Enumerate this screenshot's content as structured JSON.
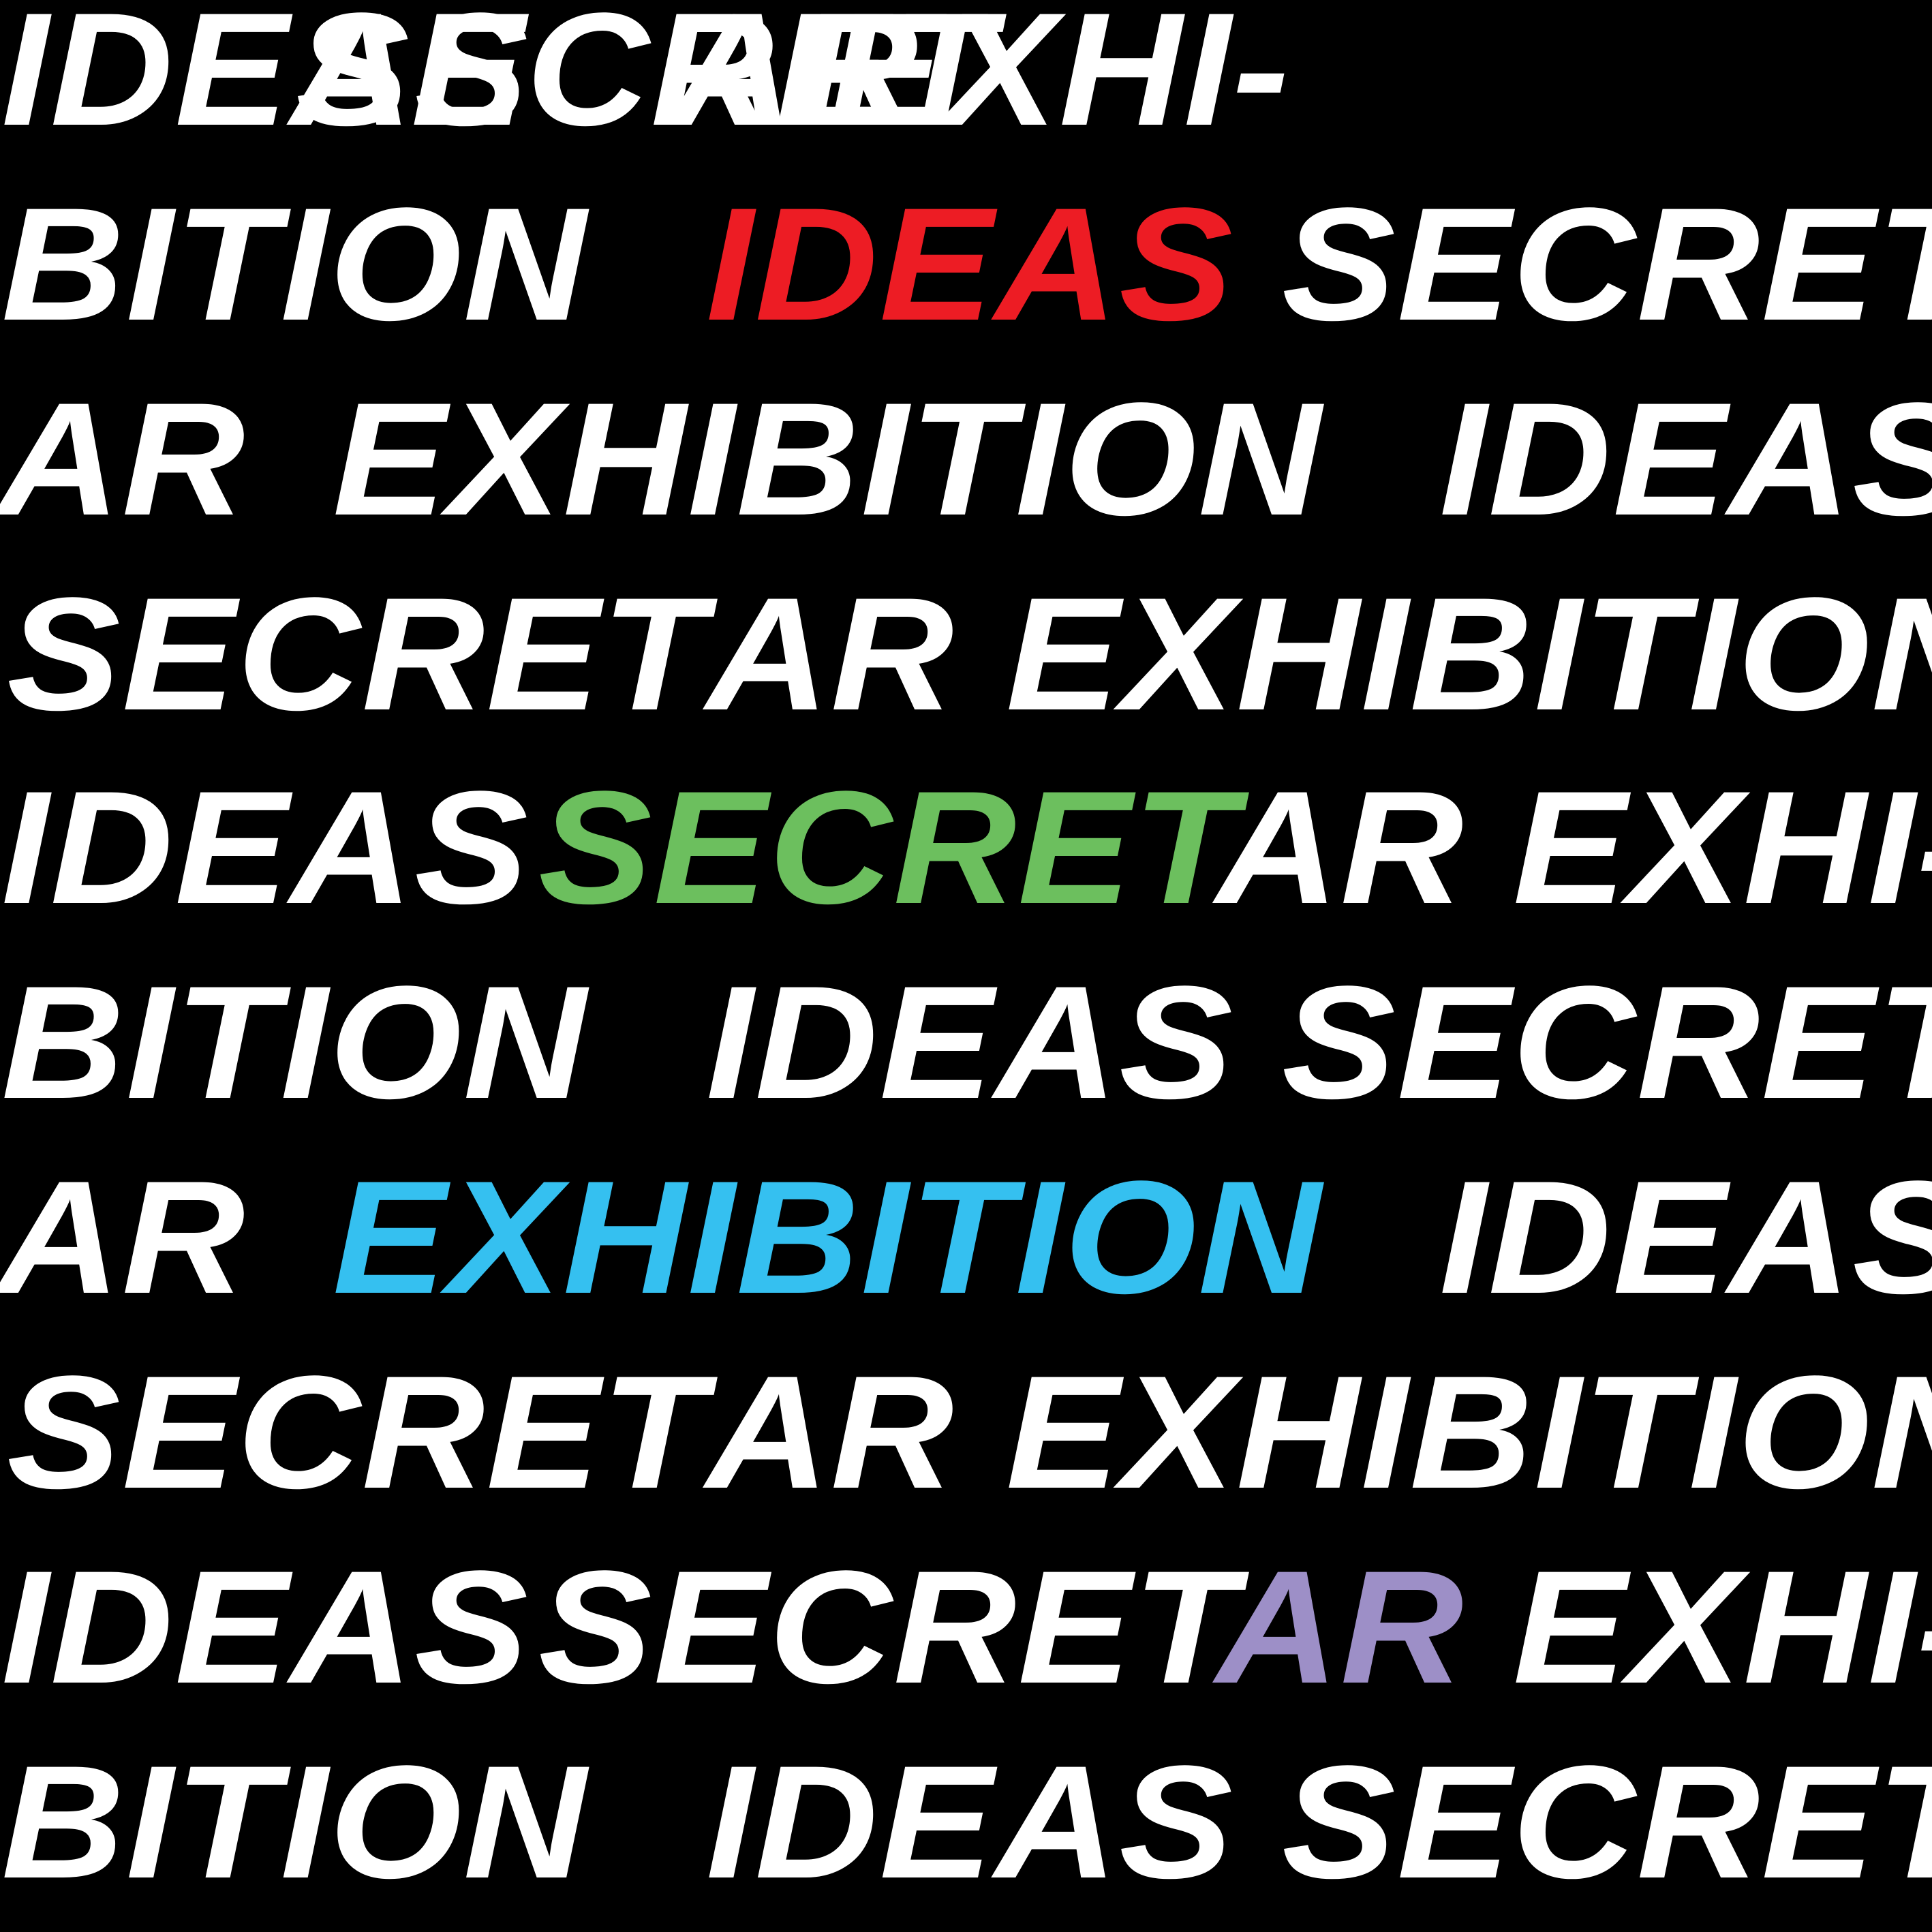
{
  "colors": {
    "background": "#000000",
    "default_text": "#ffffff",
    "red": "#ed1c24",
    "green": "#6cbf5e",
    "blue": "#35c0f0",
    "purple": "#9d8fc7"
  },
  "lines": [
    {
      "words": [
        {
          "text": "IDEAS"
        },
        {
          "text": "SECRET"
        },
        {
          "text": "AR"
        },
        {
          "text": "EXHI-"
        }
      ]
    },
    {
      "words": [
        {
          "text": "BITION"
        },
        {
          "text": "IDEAS",
          "color": "red"
        },
        {
          "text": "SECRET"
        }
      ]
    },
    {
      "words": [
        {
          "text": "AR"
        },
        {
          "text": "EXHIBITION"
        },
        {
          "text": "IDEAS"
        }
      ]
    },
    {
      "words": [
        {
          "text": "SECRET"
        },
        {
          "text": "AR"
        },
        {
          "text": "EXHIBITION"
        }
      ]
    },
    {
      "words": [
        {
          "text": "IDEAS"
        },
        {
          "text": "SECRET",
          "color": "green"
        },
        {
          "text": "AR"
        },
        {
          "text": "EXHI-"
        }
      ]
    },
    {
      "words": [
        {
          "text": "BITION"
        },
        {
          "text": "IDEAS"
        },
        {
          "text": "SECRET"
        }
      ]
    },
    {
      "words": [
        {
          "text": "AR"
        },
        {
          "text": "EXHIBITION",
          "color": "blue"
        },
        {
          "text": "IDEAS"
        }
      ]
    },
    {
      "words": [
        {
          "text": "SECRET"
        },
        {
          "text": "AR"
        },
        {
          "text": "EXHIBITION"
        }
      ]
    },
    {
      "words": [
        {
          "text": "IDEAS"
        },
        {
          "text": "SECRET"
        },
        {
          "text": "AR",
          "color": "purple"
        },
        {
          "text": "EXHI-"
        }
      ]
    },
    {
      "words": [
        {
          "text": "BITION"
        },
        {
          "text": "IDEAS"
        },
        {
          "text": "SECRET"
        }
      ]
    }
  ]
}
